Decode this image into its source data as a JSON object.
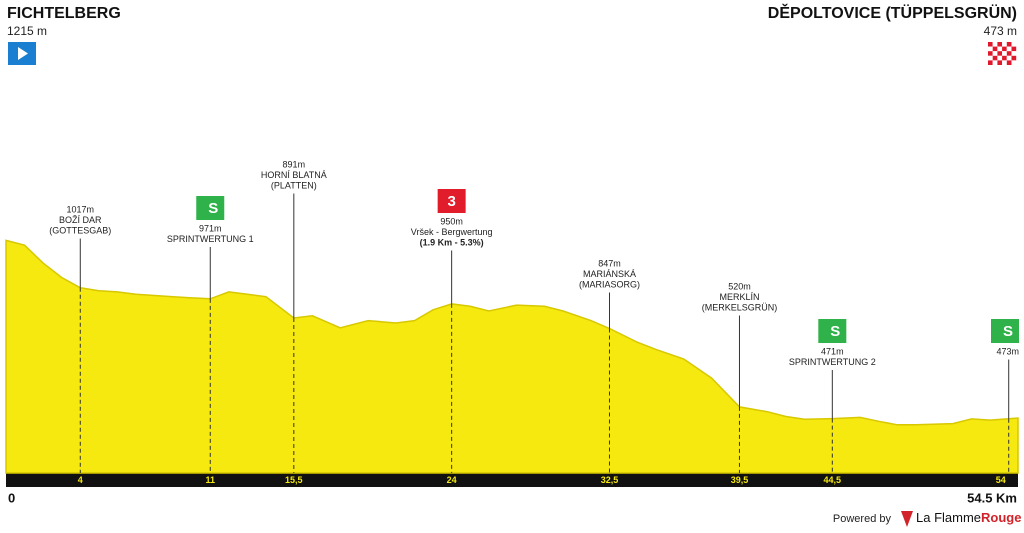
{
  "chart_data": {
    "type": "profile",
    "start": {
      "name": "FICHTELBERG",
      "elevation": "1215 m"
    },
    "finish": {
      "name": "DĚPOLTOVICE (TÜPPELSGRÜN)",
      "elevation": "473 m"
    },
    "profile": {
      "color": "#f5e90f",
      "x": [
        0,
        1,
        2,
        3,
        4,
        5,
        6,
        7,
        8,
        9,
        10,
        11,
        12,
        13,
        14,
        15.5,
        16.5,
        18,
        19.5,
        21,
        22,
        23,
        24,
        25,
        26,
        27.5,
        29,
        30,
        31.5,
        32.5,
        34,
        35,
        36.5,
        38,
        39.5,
        41,
        42,
        43,
        44.5,
        46,
        47,
        48,
        49,
        51,
        52,
        53,
        54.5
      ],
      "values": [
        1215,
        1195,
        1120,
        1060,
        1017,
        1005,
        1000,
        990,
        985,
        980,
        975,
        971,
        1000,
        990,
        980,
        891,
        900,
        850,
        880,
        870,
        880,
        925,
        950,
        940,
        920,
        945,
        940,
        920,
        880,
        847,
        790,
        760,
        720,
        640,
        520,
        500,
        480,
        468,
        471,
        476,
        460,
        445,
        445,
        450,
        470,
        465,
        473
      ]
    },
    "xlim": [
      0,
      54.5
    ],
    "ylim": [
      244,
      1300
    ],
    "xticks": [
      4,
      11,
      {
        "value": 15.5,
        "label": "15,5"
      },
      24,
      {
        "value": 32.5,
        "label": "32,5"
      },
      {
        "value": 39.5,
        "label": "39,5"
      },
      {
        "value": 44.5,
        "label": "44,5"
      },
      54
    ],
    "annotations": [
      {
        "lines": [
          "1017m",
          "BOŽÍ DAR",
          "(GOTTESGAB)"
        ]
      },
      {
        "lines": [
          "971m",
          "SPRINTWERTUNG 1"
        ],
        "icon": "S"
      },
      {
        "lines": [
          "891m",
          "HORNÍ BLATNÁ",
          "(PLATTEN)"
        ]
      },
      {
        "lines": [
          "950m",
          "Vršek - Bergwertung",
          "(1.9 Km - 5.3%)"
        ],
        "icon": "3"
      },
      {
        "lines": [
          "847m",
          "MARIÁNSKÁ",
          "(MARIASORG)"
        ]
      },
      {
        "lines": [
          "520m",
          "MERKLÍN",
          "(MERKELSGRÜN)"
        ]
      },
      {
        "lines": [
          "471m",
          "SPRINTWERTUNG 2"
        ],
        "icon": "S"
      },
      {
        "lines": [
          "473m"
        ],
        "icon": "S"
      }
    ],
    "x_start_label": "0",
    "x_end_label": "54.5 Km",
    "credit": {
      "prefix": "Powered by",
      "brand": "La Flamme",
      "brand_accent": "Rouge"
    }
  }
}
